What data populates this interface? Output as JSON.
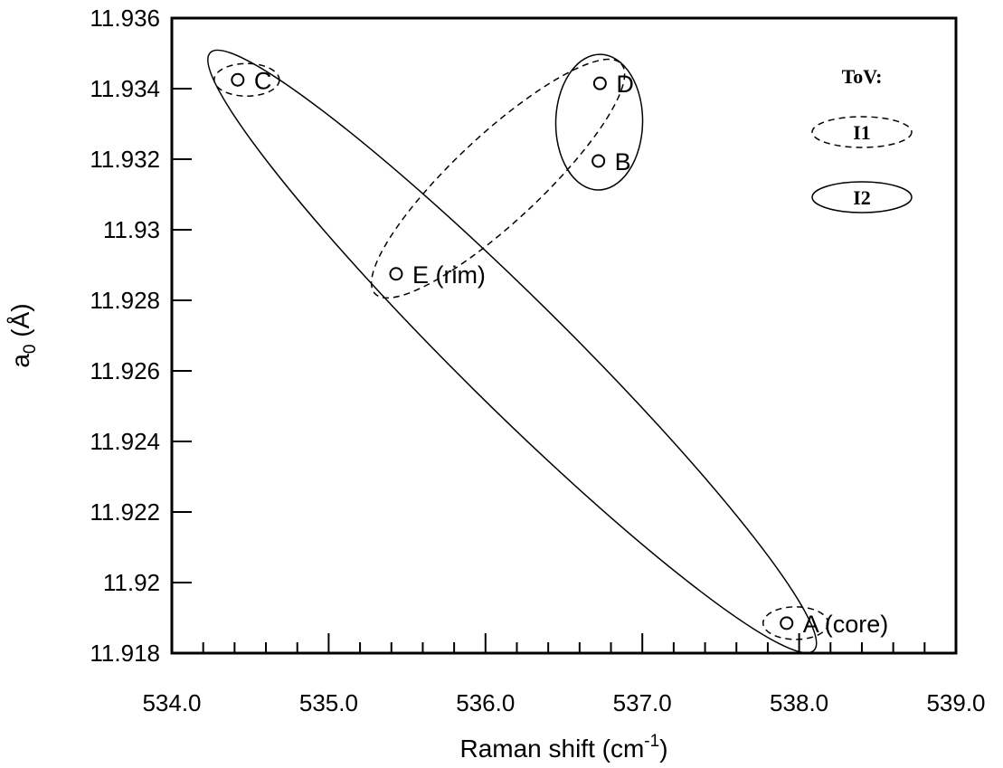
{
  "chart_data": {
    "type": "scatter",
    "xlabel": "Raman shift (cm",
    "xlabel_sup": "-1",
    "xlabel_end": ")",
    "ylabel": "a",
    "ylabel_sub": "0",
    "ylabel_end": " (Å)",
    "xlim": [
      534.0,
      539.0
    ],
    "ylim": [
      11.918,
      11.936
    ],
    "xticks": [
      534.0,
      535.0,
      536.0,
      537.0,
      538.0,
      539.0
    ],
    "xtick_labels": [
      "534.0",
      "535.0",
      "536.0",
      "537.0",
      "538.0",
      "539.0"
    ],
    "xminor_step": 0.2,
    "yticks": [
      11.918,
      11.92,
      11.922,
      11.924,
      11.926,
      11.928,
      11.93,
      11.932,
      11.934,
      11.936
    ],
    "ytick_labels": [
      "11.918",
      "11.92",
      "11.922",
      "11.924",
      "11.926",
      "11.928",
      "11.93",
      "11.932",
      "11.934",
      "11.936"
    ],
    "points": [
      {
        "label": "C",
        "x": 534.42,
        "y": 11.93425
      },
      {
        "label": "D",
        "x": 536.73,
        "y": 11.93415
      },
      {
        "label": "B",
        "x": 536.72,
        "y": 11.93195
      },
      {
        "label": "E (rim)",
        "x": 535.43,
        "y": 11.92875
      },
      {
        "label": "A (core)",
        "x": 537.92,
        "y": 11.91885
      }
    ],
    "groupings": [
      {
        "style": "I2",
        "members": [
          "C",
          "A (core)"
        ]
      },
      {
        "style": "I2",
        "members": [
          "D",
          "B"
        ]
      },
      {
        "style": "I1",
        "members": [
          "E (rim)",
          "D"
        ]
      },
      {
        "style": "I1",
        "members": [
          "C"
        ]
      },
      {
        "style": "I1",
        "members": [
          "A (core)"
        ]
      }
    ],
    "legend": {
      "title": "ToV:",
      "placement": "top-right",
      "items": [
        {
          "label": "I1",
          "line": "dashed"
        },
        {
          "label": "I2",
          "line": "solid"
        }
      ]
    },
    "grid": false
  }
}
